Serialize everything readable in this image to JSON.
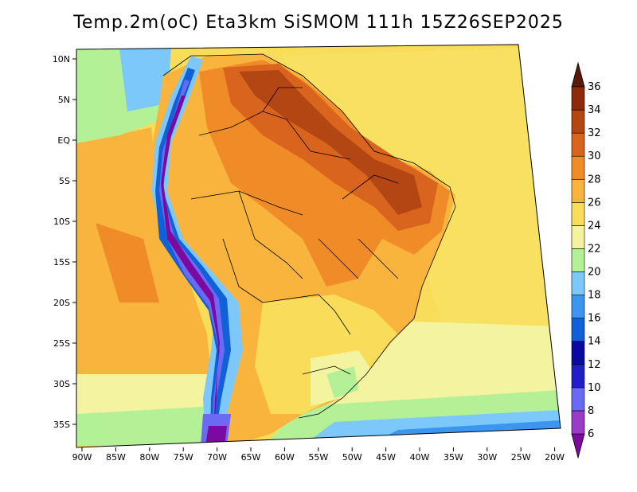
{
  "title": "Temp.2m(oC) Eta3km SiSMOM 111h 15Z26SEP2025",
  "variable": "Temp.2m",
  "units": "oC",
  "model": "Eta3km SiSMOM",
  "forecast_hour": "111h",
  "valid_time": "15Z26SEP2025",
  "lat_labels": [
    "10N",
    "5N",
    "EQ",
    "5S",
    "10S",
    "15S",
    "20S",
    "25S",
    "30S",
    "35S"
  ],
  "lon_labels": [
    "90W",
    "85W",
    "80W",
    "75W",
    "70W",
    "65W",
    "60W",
    "55W",
    "50W",
    "45W",
    "40W",
    "35W",
    "30W",
    "25W",
    "20W"
  ],
  "colorbar": {
    "labels": [
      "6",
      "8",
      "10",
      "12",
      "14",
      "16",
      "18",
      "20",
      "22",
      "24",
      "26",
      "28",
      "30",
      "32",
      "34",
      "36"
    ],
    "colors": [
      "#7a0aa0",
      "#9a3cc8",
      "#6a6af5",
      "#1f1fc8",
      "#0a0aa0",
      "#1060d8",
      "#3c96f0",
      "#7cc8fa",
      "#b4f096",
      "#f4f4a0",
      "#f8dc5a",
      "#f8b43c",
      "#f08c28",
      "#d8641e",
      "#b44614",
      "#8c2a0a",
      "#5a1a0a"
    ]
  }
}
